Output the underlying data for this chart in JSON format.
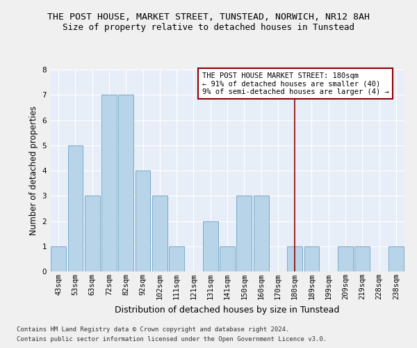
{
  "title": "THE POST HOUSE, MARKET STREET, TUNSTEAD, NORWICH, NR12 8AH",
  "subtitle": "Size of property relative to detached houses in Tunstead",
  "xlabel": "Distribution of detached houses by size in Tunstead",
  "ylabel": "Number of detached properties",
  "categories": [
    "43sqm",
    "53sqm",
    "63sqm",
    "72sqm",
    "82sqm",
    "92sqm",
    "102sqm",
    "111sqm",
    "121sqm",
    "131sqm",
    "141sqm",
    "150sqm",
    "160sqm",
    "170sqm",
    "180sqm",
    "189sqm",
    "199sqm",
    "209sqm",
    "219sqm",
    "228sqm",
    "238sqm"
  ],
  "values": [
    1,
    5,
    3,
    7,
    7,
    4,
    3,
    1,
    0,
    2,
    1,
    3,
    3,
    0,
    1,
    1,
    0,
    1,
    1,
    0,
    1
  ],
  "bar_color": "#b8d4e8",
  "bar_edge_color": "#7aaac8",
  "fig_background_color": "#f0f0f0",
  "ax_background_color": "#e8eef8",
  "grid_color": "#ffffff",
  "vline_x_index": 14,
  "vline_color": "#8b0000",
  "annotation_box_text": "THE POST HOUSE MARKET STREET: 180sqm\n← 91% of detached houses are smaller (40)\n9% of semi-detached houses are larger (4) →",
  "annotation_box_color": "#ffffff",
  "annotation_box_edge_color": "#8b0000",
  "footer1": "Contains HM Land Registry data © Crown copyright and database right 2024.",
  "footer2": "Contains public sector information licensed under the Open Government Licence v3.0.",
  "ylim": [
    0,
    8
  ],
  "yticks": [
    0,
    1,
    2,
    3,
    4,
    5,
    6,
    7,
    8
  ],
  "title_fontsize": 9.5,
  "subtitle_fontsize": 9,
  "xlabel_fontsize": 9,
  "ylabel_fontsize": 8.5,
  "tick_fontsize": 7.5,
  "annotation_fontsize": 7.5,
  "footer_fontsize": 6.5
}
